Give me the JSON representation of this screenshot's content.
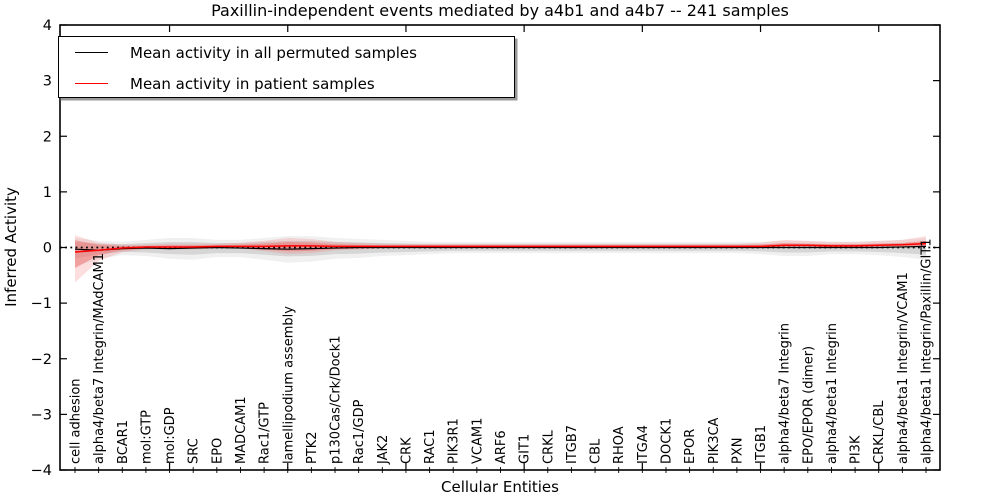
{
  "figure": {
    "title": "Paxillin-independent events mediated by a4b1 and a4b7 -- 241 samples"
  },
  "chart_data": {
    "type": "line",
    "title": "Paxillin-independent events mediated by a4b1 and a4b7 -- 241 samples",
    "xlabel": "Cellular Entities",
    "ylabel": "Inferred Activity",
    "ylim": [
      -4,
      4
    ],
    "yticks": [
      4,
      3,
      2,
      1,
      0,
      -1,
      -2,
      -3,
      -4
    ],
    "xticks_major_indices": [
      4,
      9,
      14,
      19,
      24,
      29,
      34
    ],
    "grid": false,
    "legend_position": "upper-left",
    "categories": [
      "cell adhesion",
      "alpha4/beta7 Integrin/MAdCAM1",
      "BCAR1",
      "mol:GTP",
      "mol:GDP",
      "SRC",
      "EPO",
      "MADCAM1",
      "Rac1/GTP",
      "lamellipodium assembly",
      "PTK2",
      "p130Cas/Crk/Dock1",
      "Rac1/GDP",
      "JAK2",
      "CRK",
      "RAC1",
      "PIK3R1",
      "VCAM1",
      "ARF6",
      "GIT1",
      "CRKL",
      "ITGB7",
      "CBL",
      "RHOA",
      "ITGA4",
      "DOCK1",
      "EPOR",
      "PIK3CA",
      "PXN",
      "ITGB1",
      "alpha4/beta7 Integrin",
      "EPO/EPOR (dimer)",
      "alpha4/beta1 Integrin",
      "PI3K",
      "CRKL/CBL",
      "alpha4/beta1 Integrin/VCAM1",
      "alpha4/beta1 Integrin/Paxillin/GIT1"
    ],
    "series": [
      {
        "name": "Mean activity in all permuted samples",
        "color": "#000000",
        "values": [
          -0.03,
          -0.05,
          -0.02,
          -0.01,
          -0.02,
          -0.01,
          0.0,
          -0.01,
          -0.02,
          -0.03,
          -0.02,
          -0.01,
          0.0,
          0.0,
          0.0,
          0.0,
          0.0,
          0.0,
          0.0,
          0.0,
          0.0,
          0.0,
          0.0,
          0.0,
          0.0,
          0.0,
          0.0,
          0.0,
          0.0,
          0.0,
          0.0,
          0.0,
          0.0,
          0.0,
          0.0,
          0.01,
          0.02
        ]
      },
      {
        "name": "Mean activity in patient samples",
        "color": "#ff0000",
        "values": [
          -0.08,
          -0.05,
          -0.01,
          0.01,
          0.01,
          0.01,
          0.02,
          0.02,
          0.02,
          0.03,
          0.03,
          0.02,
          0.02,
          0.02,
          0.02,
          0.02,
          0.02,
          0.02,
          0.02,
          0.02,
          0.02,
          0.02,
          0.02,
          0.02,
          0.02,
          0.02,
          0.02,
          0.02,
          0.02,
          0.02,
          0.04,
          0.04,
          0.03,
          0.03,
          0.04,
          0.05,
          0.07
        ]
      }
    ],
    "bands": [
      {
        "name": "permuted-range",
        "color": "#bbbbbb",
        "upper": [
          0.1,
          0.07,
          0.06,
          0.08,
          0.1,
          0.1,
          0.08,
          0.08,
          0.1,
          0.12,
          0.12,
          0.1,
          0.09,
          0.08,
          0.07,
          0.06,
          0.06,
          0.06,
          0.06,
          0.06,
          0.06,
          0.06,
          0.06,
          0.06,
          0.06,
          0.06,
          0.06,
          0.06,
          0.06,
          0.06,
          0.07,
          0.07,
          0.06,
          0.06,
          0.07,
          0.08,
          0.1
        ],
        "lower": [
          -0.2,
          -0.12,
          -0.08,
          -0.09,
          -0.12,
          -0.13,
          -0.1,
          -0.1,
          -0.13,
          -0.16,
          -0.15,
          -0.12,
          -0.11,
          -0.09,
          -0.08,
          -0.07,
          -0.06,
          -0.06,
          -0.06,
          -0.06,
          -0.06,
          -0.06,
          -0.06,
          -0.06,
          -0.06,
          -0.06,
          -0.06,
          -0.06,
          -0.06,
          -0.07,
          -0.09,
          -0.09,
          -0.07,
          -0.07,
          -0.08,
          -0.1,
          -0.13
        ]
      },
      {
        "name": "patient-range",
        "color": "#f26a6a",
        "upper": [
          0.13,
          0.05,
          0.03,
          0.03,
          0.04,
          0.04,
          0.04,
          0.05,
          0.07,
          0.1,
          0.09,
          0.06,
          0.05,
          0.04,
          0.04,
          0.04,
          0.04,
          0.04,
          0.04,
          0.04,
          0.04,
          0.04,
          0.04,
          0.04,
          0.04,
          0.04,
          0.04,
          0.04,
          0.04,
          0.05,
          0.08,
          0.07,
          0.06,
          0.06,
          0.07,
          0.08,
          0.12
        ],
        "lower": [
          -0.37,
          -0.14,
          -0.05,
          -0.02,
          -0.02,
          -0.02,
          -0.01,
          -0.01,
          -0.04,
          -0.07,
          -0.06,
          -0.03,
          -0.02,
          -0.01,
          0.0,
          0.0,
          0.0,
          0.0,
          0.0,
          0.0,
          0.0,
          0.0,
          0.0,
          0.0,
          0.0,
          0.0,
          0.0,
          0.0,
          0.0,
          0.0,
          0.01,
          0.01,
          0.0,
          0.01,
          0.01,
          0.02,
          0.02
        ]
      }
    ],
    "zero_line": {
      "style": "dotted",
      "color": "#000000",
      "y": 0
    }
  }
}
